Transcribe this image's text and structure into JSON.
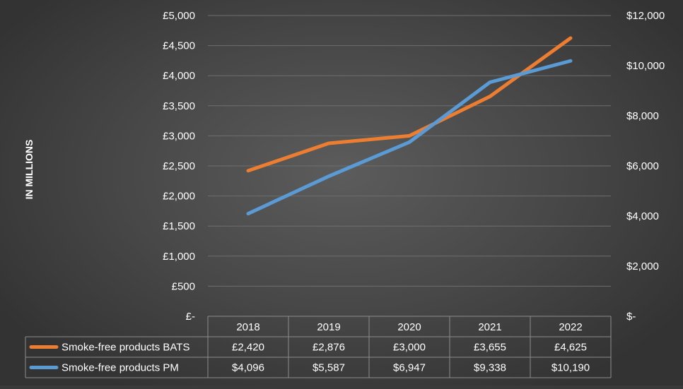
{
  "chart_data": {
    "type": "line",
    "ylabel": "IN MILLIONS",
    "categories": [
      "2018",
      "2019",
      "2020",
      "2021",
      "2022"
    ],
    "y_left": {
      "ylim": [
        0,
        5000
      ],
      "ticks": [
        "£-",
        "£500",
        "£1,000",
        "£1,500",
        "£2,000",
        "£2,500",
        "£3,000",
        "£3,500",
        "£4,000",
        "£4,500",
        "£5,000"
      ]
    },
    "y_right": {
      "ylim": [
        0,
        12000
      ],
      "ticks": [
        "$-",
        "$2,000",
        "$4,000",
        "$6,000",
        "$8,000",
        "$10,000",
        "$12,000"
      ]
    },
    "grid": true,
    "legend_placement": "data-table-left",
    "series": [
      {
        "name": "Smoke-free products BATS",
        "axis": "left",
        "color": "#ED7D31",
        "values": [
          2420,
          2876,
          3000,
          3655,
          4625
        ],
        "labels": [
          "£2,420",
          "£2,876",
          "£3,000",
          "£3,655",
          "£4,625"
        ]
      },
      {
        "name": "Smoke-free products PM",
        "axis": "right",
        "color": "#5B9BD5",
        "values": [
          4096,
          5587,
          6947,
          9338,
          10190
        ],
        "labels": [
          "$4,096",
          "$5,587",
          "$6,947",
          "$9,338",
          "$10,190"
        ]
      }
    ]
  }
}
